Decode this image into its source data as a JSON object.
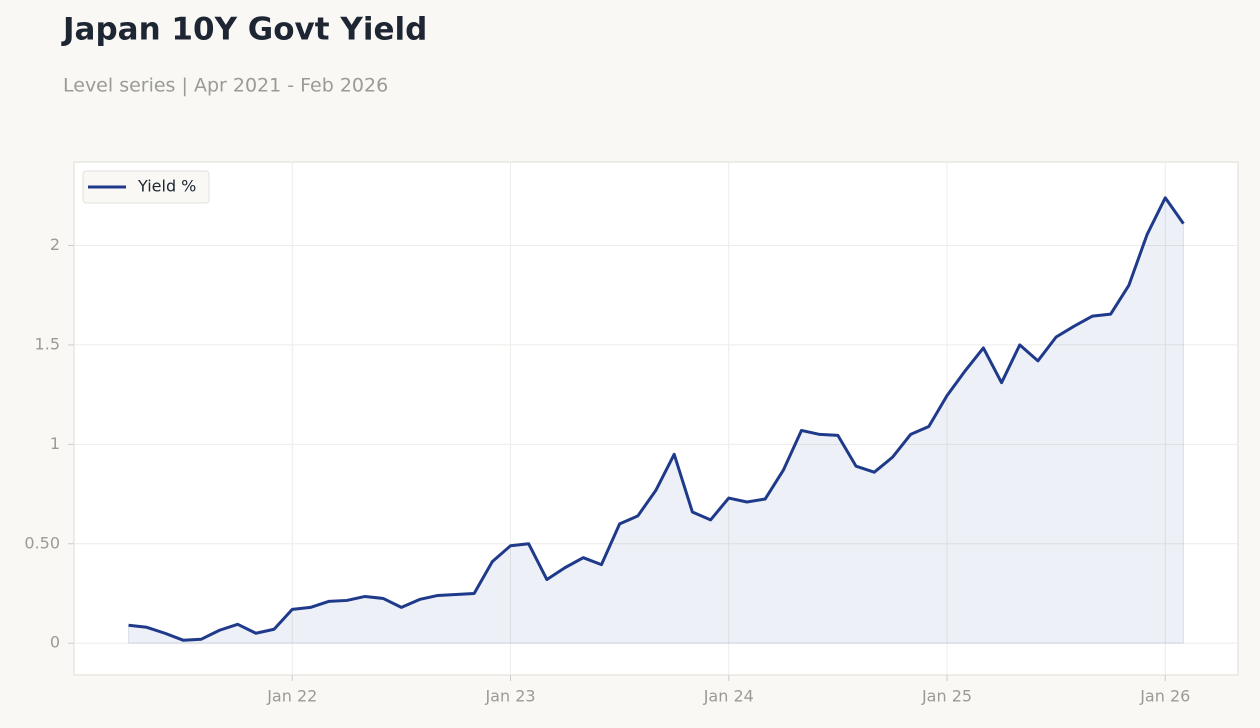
{
  "chart_data": {
    "type": "line",
    "title": "Japan 10Y Govt Yield",
    "subtitle": "Level series | Apr 2021 - Feb 2026",
    "x": [
      "2021-04",
      "2021-05",
      "2021-06",
      "2021-07",
      "2021-08",
      "2021-09",
      "2021-10",
      "2021-11",
      "2021-12",
      "2022-01",
      "2022-02",
      "2022-03",
      "2022-04",
      "2022-05",
      "2022-06",
      "2022-07",
      "2022-08",
      "2022-09",
      "2022-10",
      "2022-11",
      "2022-12",
      "2023-01",
      "2023-02",
      "2023-03",
      "2023-04",
      "2023-05",
      "2023-06",
      "2023-07",
      "2023-08",
      "2023-09",
      "2023-10",
      "2023-11",
      "2023-12",
      "2024-01",
      "2024-02",
      "2024-03",
      "2024-04",
      "2024-05",
      "2024-06",
      "2024-07",
      "2024-08",
      "2024-09",
      "2024-10",
      "2024-11",
      "2024-12",
      "2025-01",
      "2025-02",
      "2025-03",
      "2025-04",
      "2025-05",
      "2025-06",
      "2025-07",
      "2025-08",
      "2025-09",
      "2025-10",
      "2025-11",
      "2025-12",
      "2026-01",
      "2026-02"
    ],
    "series": [
      {
        "name": "Yield %",
        "color": "#1f3a8a",
        "values": [
          0.09,
          0.08,
          0.05,
          0.015,
          0.02,
          0.065,
          0.095,
          0.05,
          0.07,
          0.17,
          0.18,
          0.21,
          0.215,
          0.235,
          0.225,
          0.18,
          0.22,
          0.24,
          0.245,
          0.25,
          0.41,
          0.49,
          0.5,
          0.32,
          0.38,
          0.43,
          0.395,
          0.6,
          0.64,
          0.77,
          0.95,
          0.66,
          0.62,
          0.73,
          0.71,
          0.725,
          0.87,
          1.07,
          1.05,
          1.045,
          0.89,
          0.86,
          0.935,
          1.05,
          1.09,
          1.245,
          1.37,
          1.485,
          1.31,
          1.5,
          1.42,
          1.54,
          1.595,
          1.645,
          1.655,
          1.8,
          2.055,
          2.24,
          2.11
        ]
      }
    ],
    "xlim": [
      "2021-01",
      "2026-05"
    ],
    "xticks": [
      {
        "value": "2022-01",
        "label": "Jan 22"
      },
      {
        "value": "2023-01",
        "label": "Jan 23"
      },
      {
        "value": "2024-01",
        "label": "Jan 24"
      },
      {
        "value": "2025-01",
        "label": "Jan 25"
      },
      {
        "value": "2026-01",
        "label": "Jan 26"
      }
    ],
    "ylim": [
      -0.16,
      2.42
    ],
    "yticks": [
      0,
      {
        "value": 0.5,
        "label": "0.50"
      },
      1,
      1.5,
      2
    ],
    "grid": true,
    "legend": "upper left",
    "area_fill": true
  }
}
